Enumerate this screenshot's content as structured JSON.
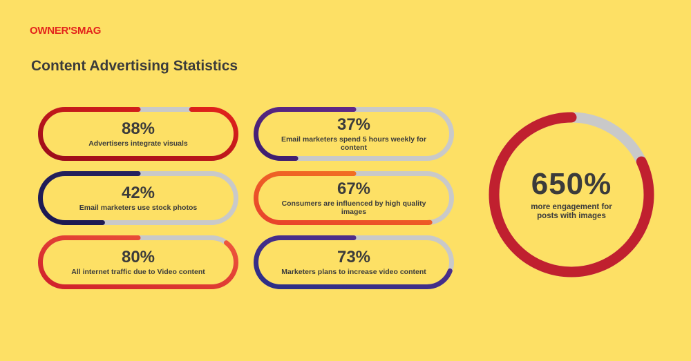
{
  "brand": {
    "logo": "OWNER'SMAG",
    "color": "#e3231b"
  },
  "page": {
    "title": "Content Advertising Statistics"
  },
  "colors": {
    "background": "#fde065",
    "track": "#c9c9c9",
    "text": "#3b3b3b"
  },
  "stats": [
    {
      "value": "88%",
      "label": "Advertisers integrate visuals",
      "progress": 0.88,
      "colors": [
        "#e3231b",
        "#9a0c1a"
      ]
    },
    {
      "value": "42%",
      "label": "Email marketers use stock photos",
      "progress": 0.42,
      "colors": [
        "#2a2563",
        "#1b1850"
      ]
    },
    {
      "value": "80%",
      "label": "All internet traffic due to Video content",
      "progress": 0.8,
      "colors": [
        "#f05a3c",
        "#d01f2a"
      ]
    },
    {
      "value": "37%",
      "label": "Email marketers spend 5 hours weekly for content",
      "progress": 0.37,
      "colors": [
        "#6b2c8f",
        "#3c1d6e"
      ]
    },
    {
      "value": "67%",
      "label": "Consumers are influenced by high quality images",
      "progress": 0.67,
      "colors": [
        "#f47b20",
        "#e8412b"
      ]
    },
    {
      "value": "73%",
      "label": "Marketers plans to increase video content",
      "progress": 0.73,
      "colors": [
        "#5b2d8c",
        "#2b2f86"
      ]
    }
  ],
  "highlight": {
    "value": "650%",
    "label": "more engagement for posts with images",
    "progress": 0.82,
    "color": "#c0202f"
  }
}
